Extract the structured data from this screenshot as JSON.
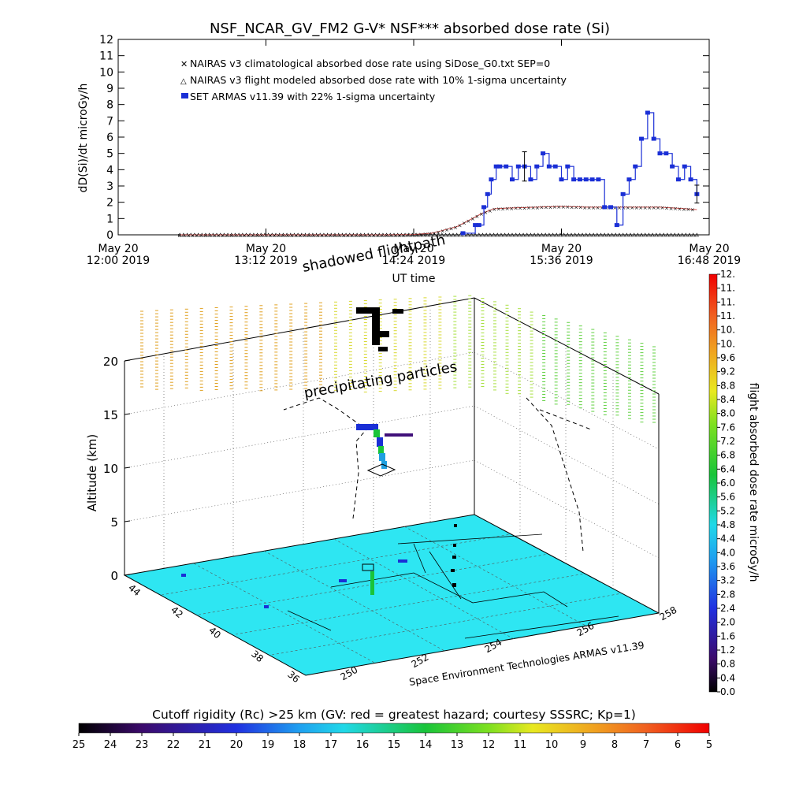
{
  "title": "NSF_NCAR_GV_FM2 G-V* NSF*** absorbed dose rate (Si)",
  "chart_data": [
    {
      "type": "line",
      "title": "NSF_NCAR_GV_FM2 G-V* NSF*** absorbed dose rate (Si)",
      "xlabel": "UT time",
      "ylabel": "dD(Si)/dt microGy/h",
      "ylim": [
        0,
        12
      ],
      "xlim_hours_ut": [
        12.0,
        16.8
      ],
      "yticks": [
        "0",
        "1",
        "2",
        "3",
        "4",
        "5",
        "6",
        "7",
        "8",
        "9",
        "10",
        "11",
        "12"
      ],
      "xticks": [
        {
          "line1": "May 20",
          "line2": "12:00 2019"
        },
        {
          "line1": "May 20",
          "line2": "13:12 2019"
        },
        {
          "line1": "May 20",
          "line2": "14:24 2019"
        },
        {
          "line1": "May 20",
          "line2": "15:36 2019"
        },
        {
          "line1": "May 20",
          "line2": "16:48 2019"
        }
      ],
      "legend": [
        {
          "label": "NAIRAS v3 climatological absorbed dose rate using SiDose_G0.txt SEP=0",
          "color": "#d9534f",
          "marker": "x"
        },
        {
          "label": "NAIRAS v3 flight modeled absorbed dose rate with 10% 1-sigma uncertainty",
          "color": "#000000",
          "marker": "triangle"
        },
        {
          "label": "SET ARMAS v11.39 with 22% 1-sigma uncertainty",
          "color": "#1a2fd6",
          "marker": "square"
        }
      ],
      "legend_position": "top-left",
      "series_climatological": {
        "x": [
          12.5,
          13.0,
          13.5,
          14.0,
          14.2,
          14.4,
          14.55,
          14.65,
          14.75,
          14.85,
          14.95,
          15.05,
          15.2,
          15.4,
          15.6,
          15.8,
          16.0,
          16.2,
          16.4,
          16.6,
          16.7
        ],
        "y": [
          0,
          0,
          0,
          0,
          0,
          0.02,
          0.1,
          0.3,
          0.5,
          0.9,
          1.3,
          1.6,
          1.65,
          1.7,
          1.75,
          1.7,
          1.7,
          1.7,
          1.7,
          1.6,
          1.55
        ]
      },
      "series_modeled": {
        "x": [
          12.5,
          13.0,
          13.5,
          14.0,
          14.5,
          15.0,
          15.5,
          16.0,
          16.5,
          16.7
        ],
        "y": [
          0,
          0,
          0,
          0,
          0,
          0,
          0,
          0,
          0,
          0
        ]
      },
      "series_armas": {
        "x": [
          14.8,
          14.9,
          14.93,
          14.97,
          15.0,
          15.03,
          15.07,
          15.1,
          15.15,
          15.2,
          15.25,
          15.3,
          15.35,
          15.4,
          15.45,
          15.5,
          15.55,
          15.6,
          15.65,
          15.7,
          15.75,
          15.8,
          15.85,
          15.9,
          15.95,
          16.0,
          16.05,
          16.1,
          16.15,
          16.2,
          16.25,
          16.3,
          16.35,
          16.4,
          16.45,
          16.5,
          16.55,
          16.6,
          16.65,
          16.7
        ],
        "y": [
          0.1,
          0.6,
          0.6,
          1.7,
          2.5,
          3.4,
          4.2,
          4.2,
          4.2,
          3.4,
          4.2,
          4.2,
          3.4,
          4.2,
          5.0,
          4.2,
          4.2,
          3.4,
          4.2,
          3.4,
          3.4,
          3.4,
          3.4,
          3.4,
          1.7,
          1.7,
          0.6,
          2.5,
          3.4,
          4.2,
          5.9,
          7.5,
          5.9,
          5.0,
          5.0,
          4.2,
          3.4,
          4.2,
          3.4,
          2.5
        ]
      }
    },
    {
      "type": "scatter",
      "zlabel": "Altitude (km)",
      "zticks": [
        "0",
        "5",
        "10",
        "15",
        "20"
      ],
      "lat_ticks": [
        "36",
        "38",
        "40",
        "42",
        "44"
      ],
      "lon_ticks": [
        "250",
        "252",
        "254",
        "256",
        "258"
      ],
      "annotations": [
        "shadowed flightpath",
        "precipitating particles"
      ],
      "credit": "Space Environment Technologies ARMAS v11.39"
    },
    {
      "type": "heatmap",
      "colorbar_label": "flight absorbed dose rate microGy/h",
      "colorbar_ticks": [
        "0.0",
        "0.4",
        "0.8",
        "1.2",
        "1.6",
        "2.0",
        "2.4",
        "2.8",
        "3.2",
        "3.6",
        "4.0",
        "4.4",
        "4.8",
        "5.2",
        "5.6",
        "6.0",
        "6.4",
        "6.8",
        "7.2",
        "7.6",
        "8.0",
        "8.4",
        "8.8",
        "9.2",
        "9.6",
        "10.",
        "10.",
        "11.",
        "11.",
        "11.",
        "12."
      ]
    },
    {
      "type": "heatmap",
      "colorbar_label": "Cutoff rigidity (Rc) >25 km (GV: red = greatest hazard; courtesy SSSRC; Kp=1)",
      "colorbar_ticks": [
        "25",
        "24",
        "23",
        "22",
        "21",
        "20",
        "19",
        "18",
        "17",
        "16",
        "15",
        "14",
        "13",
        "12",
        "11",
        "10",
        "9",
        "8",
        "7",
        "6",
        "5"
      ]
    }
  ],
  "colors": {
    "climatological": "#d9534f",
    "modeled": "#000000",
    "armas": "#1a2fd6",
    "surface": "#2ee6f2"
  }
}
